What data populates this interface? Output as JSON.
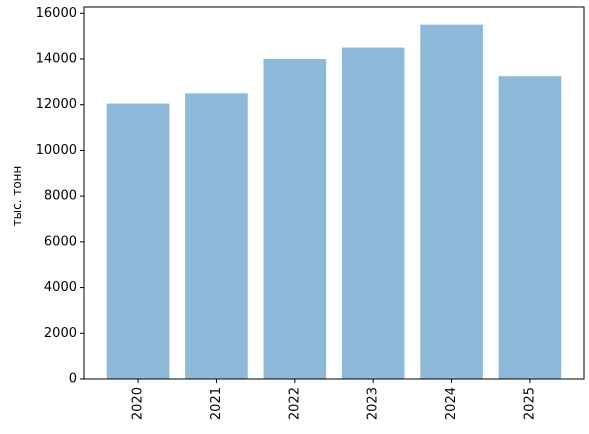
{
  "chart_data": {
    "type": "bar",
    "ylabel": "тыс. тонн",
    "categories": [
      "2020",
      "2021",
      "2022",
      "2023",
      "2024",
      "2025"
    ],
    "values": [
      12050,
      12500,
      14000,
      14500,
      15500,
      13250
    ],
    "color": "#8fb9d9",
    "ylim": [
      0,
      16275
    ],
    "yticks": [
      0,
      2000,
      4000,
      6000,
      8000,
      10000,
      12000,
      14000,
      16000
    ]
  }
}
